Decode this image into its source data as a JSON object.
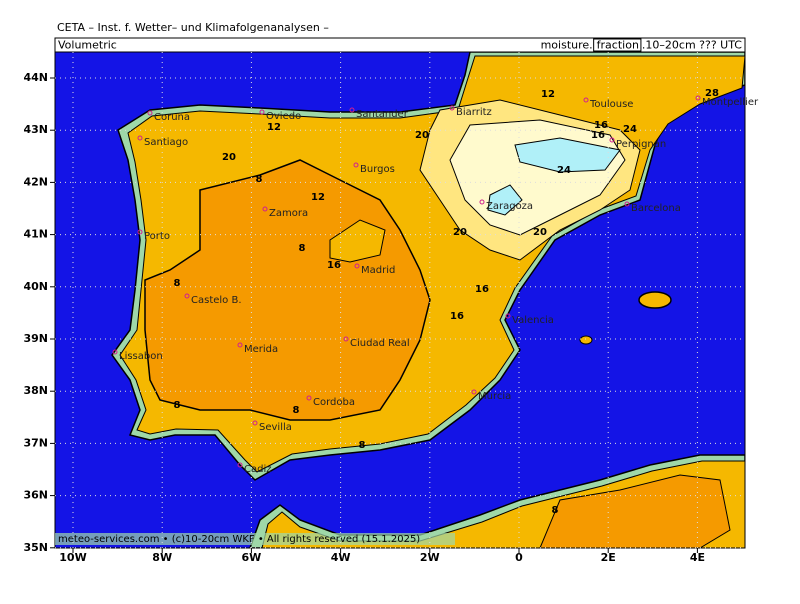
{
  "header": {
    "title": "CETA – Inst. f. Wetter– und Klimafolgenanalysen –",
    "left": "Volumetric",
    "right_prefix": "moisture.",
    "right_boxed": "fraction",
    "right_suffix": ".10–20cm ??? UTC"
  },
  "lon_ticks": [
    {
      "value": -10,
      "label": "10W"
    },
    {
      "value": -8,
      "label": "8W"
    },
    {
      "value": -6,
      "label": "6W"
    },
    {
      "value": -4,
      "label": "4W"
    },
    {
      "value": -2,
      "label": "2W"
    },
    0,
    {
      "value": 2,
      "label": "2E"
    },
    {
      "value": 4,
      "label": "4E"
    }
  ],
  "lat_ticks": [
    {
      "value": 44,
      "label": "44N"
    },
    {
      "value": 43,
      "label": "43N"
    },
    {
      "value": 42,
      "label": "42N"
    },
    {
      "value": 41,
      "label": "41N"
    },
    {
      "value": 40,
      "label": "40N"
    },
    {
      "value": 39,
      "label": "39N"
    },
    {
      "value": 38,
      "label": "38N"
    },
    {
      "value": 37,
      "label": "37N"
    },
    {
      "value": 36,
      "label": "36N"
    },
    {
      "value": 35,
      "label": "35N"
    }
  ],
  "cities": [
    "Coruña",
    "Oviedo",
    "Santander",
    "Biarritz",
    "Toulouse",
    "Montpellier",
    "Santiago",
    "Burgos",
    "Perpignan",
    "Zaragoza",
    "Barcelona",
    "Zamora",
    "Porto",
    "Madrid",
    "Castelo B.",
    "Valencia",
    "Merida",
    "Ciudad Real",
    "Lissabon",
    "Cordoba",
    "Murcia",
    "Sevilla",
    "Cadiz"
  ],
  "contour_labels": [
    12,
    16,
    20,
    24,
    20,
    16,
    8,
    12,
    8,
    16,
    12,
    20,
    16,
    8,
    8,
    8,
    8,
    24,
    28,
    16,
    20,
    8
  ],
  "footer": "meteo-services.com • (c)10-20cm WKF • All rights reserved (15.1.2025)"
}
